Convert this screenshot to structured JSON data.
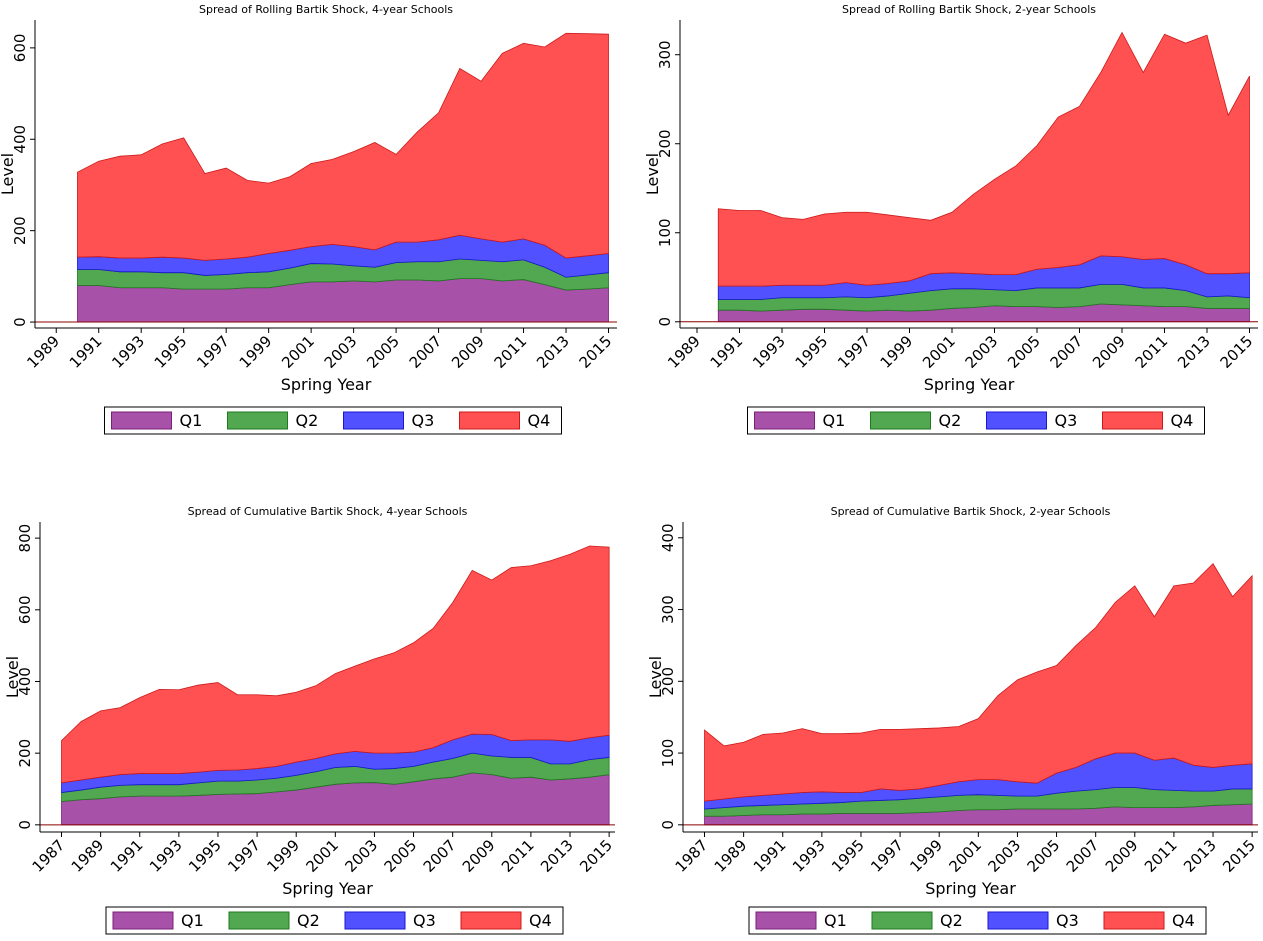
{
  "chart_data": [
    {
      "type": "stacked_area",
      "title": "Spread of Rolling Bartik Shock, 4-year Schools",
      "xlabel": "Spring Year",
      "ylabel": "Level",
      "x": [
        1990,
        1991,
        1992,
        1993,
        1994,
        1995,
        1996,
        1997,
        1998,
        1999,
        2000,
        2001,
        2002,
        2003,
        2004,
        2005,
        2006,
        2007,
        2008,
        2009,
        2010,
        2011,
        2012,
        2013,
        2014,
        2015
      ],
      "series": [
        {
          "name": "Q1",
          "color": "#993399",
          "values": [
            80,
            80,
            75,
            75,
            75,
            72,
            72,
            72,
            75,
            75,
            82,
            88,
            88,
            90,
            88,
            92,
            92,
            90,
            95,
            95,
            90,
            93,
            82,
            70,
            72,
            75
          ]
        },
        {
          "name": "Q2",
          "color": "#339933",
          "values": [
            35,
            35,
            35,
            35,
            33,
            36,
            30,
            32,
            33,
            35,
            36,
            40,
            39,
            33,
            32,
            38,
            40,
            42,
            43,
            40,
            42,
            43,
            38,
            28,
            31,
            33
          ]
        },
        {
          "name": "Q3",
          "color": "#3333ff",
          "values": [
            27,
            28,
            30,
            30,
            34,
            32,
            33,
            34,
            34,
            40,
            39,
            37,
            43,
            42,
            38,
            45,
            43,
            48,
            52,
            47,
            43,
            46,
            48,
            42,
            42,
            42
          ]
        },
        {
          "name": "Q4",
          "color": "#ff3333",
          "values": [
            186,
            209,
            223,
            226,
            248,
            263,
            190,
            199,
            168,
            154,
            161,
            182,
            186,
            208,
            235,
            192,
            241,
            278,
            365,
            345,
            413,
            428,
            434,
            492,
            486,
            480
          ]
        }
      ],
      "xlim": [
        1988,
        2015.4
      ],
      "ylim": [
        -13,
        661
      ],
      "xticks": [
        1989,
        1991,
        1993,
        1995,
        1997,
        1999,
        2001,
        2003,
        2005,
        2007,
        2009,
        2011,
        2013,
        2015
      ],
      "yticks": [
        0,
        200,
        400,
        600
      ],
      "legend": "bottom"
    },
    {
      "type": "stacked_area",
      "title": "Spread of Rolling Bartik Shock, 2-year Schools",
      "xlabel": "Spring Year",
      "ylabel": "Level",
      "x": [
        1990,
        1991,
        1992,
        1993,
        1994,
        1995,
        1996,
        1997,
        1998,
        1999,
        2000,
        2001,
        2002,
        2003,
        2004,
        2005,
        2006,
        2007,
        2008,
        2009,
        2010,
        2011,
        2012,
        2013,
        2014,
        2015
      ],
      "series": [
        {
          "name": "Q1",
          "color": "#993399",
          "values": [
            13,
            13,
            12,
            13,
            14,
            14,
            13,
            12,
            13,
            12,
            13,
            15,
            16,
            18,
            17,
            17,
            16,
            17,
            20,
            19,
            18,
            17,
            17,
            15,
            15,
            15
          ]
        },
        {
          "name": "Q2",
          "color": "#339933",
          "values": [
            12,
            12,
            13,
            14,
            13,
            13,
            15,
            15,
            16,
            20,
            22,
            22,
            21,
            18,
            18,
            21,
            22,
            21,
            22,
            23,
            20,
            21,
            18,
            13,
            14,
            12
          ]
        },
        {
          "name": "Q3",
          "color": "#3333ff",
          "values": [
            15,
            15,
            15,
            14,
            14,
            14,
            16,
            14,
            14,
            14,
            19,
            18,
            17,
            17,
            18,
            21,
            23,
            26,
            32,
            31,
            32,
            33,
            29,
            26,
            25,
            28
          ]
        },
        {
          "name": "Q4",
          "color": "#ff3333",
          "values": [
            87,
            85,
            85,
            76,
            74,
            80,
            79,
            82,
            77,
            71,
            60,
            68,
            89,
            107,
            122,
            139,
            169,
            178,
            206,
            252,
            210,
            252,
            249,
            268,
            178,
            221
          ]
        }
      ],
      "xlim": [
        1988.2,
        2015.4
      ],
      "ylim": [
        -7,
        339
      ],
      "xticks": [
        1989,
        1991,
        1993,
        1995,
        1997,
        1999,
        2001,
        2003,
        2005,
        2007,
        2009,
        2011,
        2013,
        2015
      ],
      "yticks": [
        0,
        100,
        200,
        300
      ],
      "legend": "bottom"
    },
    {
      "type": "stacked_area",
      "title": "Spread of Cumulative Bartik Shock, 4-year Schools",
      "xlabel": "Spring Year",
      "ylabel": "Level",
      "x": [
        1987,
        1988,
        1989,
        1990,
        1991,
        1992,
        1993,
        1994,
        1995,
        1996,
        1997,
        1998,
        1999,
        2000,
        2001,
        2002,
        2003,
        2004,
        2005,
        2006,
        2007,
        2008,
        2009,
        2010,
        2011,
        2012,
        2013,
        2014,
        2015
      ],
      "series": [
        {
          "name": "Q1",
          "color": "#993399",
          "values": [
            65,
            70,
            73,
            78,
            80,
            80,
            80,
            82,
            85,
            86,
            87,
            92,
            97,
            105,
            113,
            117,
            118,
            113,
            120,
            128,
            133,
            145,
            140,
            130,
            133,
            125,
            128,
            133,
            140
          ]
        },
        {
          "name": "Q2",
          "color": "#339933",
          "values": [
            25,
            27,
            32,
            32,
            32,
            32,
            32,
            35,
            37,
            36,
            38,
            38,
            41,
            43,
            47,
            46,
            37,
            44,
            43,
            47,
            52,
            55,
            52,
            58,
            55,
            45,
            42,
            49,
            48
          ]
        },
        {
          "name": "Q3",
          "color": "#3333ff",
          "values": [
            27,
            28,
            28,
            30,
            31,
            31,
            31,
            30,
            30,
            31,
            32,
            33,
            37,
            37,
            38,
            42,
            45,
            43,
            40,
            40,
            52,
            53,
            60,
            47,
            49,
            67,
            63,
            61,
            62
          ]
        },
        {
          "name": "Q4",
          "color": "#ff3333",
          "values": [
            118,
            163,
            185,
            187,
            212,
            235,
            234,
            243,
            245,
            210,
            206,
            197,
            195,
            203,
            224,
            238,
            263,
            280,
            305,
            333,
            383,
            457,
            431,
            483,
            486,
            500,
            522,
            535,
            525
          ]
        }
      ],
      "xlim": [
        1985.9,
        2015.3
      ],
      "ylim": [
        -20,
        845
      ],
      "xticks": [
        1987,
        1989,
        1991,
        1993,
        1995,
        1997,
        1999,
        2001,
        2003,
        2005,
        2007,
        2009,
        2011,
        2013,
        2015
      ],
      "yticks": [
        0,
        200,
        400,
        600,
        800
      ],
      "legend": "bottom"
    },
    {
      "type": "stacked_area",
      "title": "Spread of Cumulative Bartik Shock, 2-year Schools",
      "xlabel": "Spring Year",
      "ylabel": "Level",
      "x": [
        1987,
        1988,
        1989,
        1990,
        1991,
        1992,
        1993,
        1994,
        1995,
        1996,
        1997,
        1998,
        1999,
        2000,
        2001,
        2002,
        2003,
        2004,
        2005,
        2006,
        2007,
        2008,
        2009,
        2010,
        2011,
        2012,
        2013,
        2014,
        2015
      ],
      "series": [
        {
          "name": "Q1",
          "color": "#993399",
          "values": [
            12,
            12,
            13,
            14,
            14,
            15,
            15,
            16,
            16,
            16,
            16,
            17,
            18,
            20,
            21,
            21,
            22,
            22,
            22,
            22,
            23,
            25,
            24,
            24,
            24,
            25,
            27,
            28,
            29
          ]
        },
        {
          "name": "Q2",
          "color": "#339933",
          "values": [
            10,
            12,
            13,
            13,
            14,
            14,
            15,
            15,
            17,
            18,
            19,
            20,
            21,
            21,
            21,
            20,
            18,
            18,
            22,
            25,
            26,
            27,
            28,
            25,
            24,
            22,
            20,
            22,
            21
          ]
        },
        {
          "name": "Q3",
          "color": "#3333ff",
          "values": [
            11,
            12,
            13,
            14,
            15,
            16,
            16,
            14,
            12,
            16,
            13,
            13,
            16,
            19,
            21,
            22,
            20,
            18,
            28,
            33,
            43,
            48,
            48,
            41,
            45,
            36,
            33,
            33,
            35
          ]
        },
        {
          "name": "Q4",
          "color": "#ff3333",
          "values": [
            99,
            74,
            76,
            85,
            85,
            89,
            81,
            82,
            83,
            83,
            85,
            84,
            80,
            77,
            85,
            117,
            142,
            155,
            150,
            170,
            183,
            210,
            233,
            200,
            240,
            254,
            284,
            235,
            262
          ]
        }
      ],
      "xlim": [
        1985.9,
        2015.3
      ],
      "ylim": [
        -10,
        422
      ],
      "xticks": [
        1987,
        1989,
        1991,
        1993,
        1995,
        1997,
        1999,
        2001,
        2003,
        2005,
        2007,
        2009,
        2011,
        2013,
        2015
      ],
      "yticks": [
        0,
        100,
        200,
        300,
        400
      ],
      "legend": "bottom"
    }
  ]
}
